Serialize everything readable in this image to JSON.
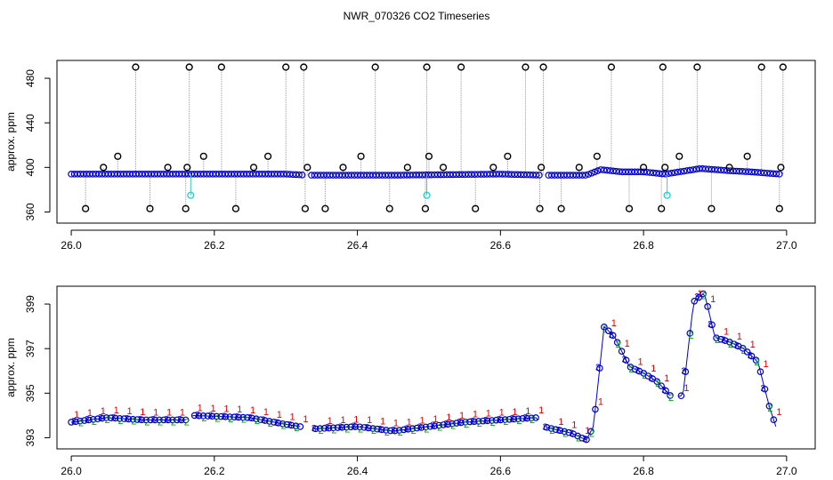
{
  "title": "NWR_070326  CO2 Timeseries",
  "chart_data": [
    {
      "type": "scatter",
      "ylabel": "approx. ppm",
      "xlabel": "",
      "xlim": [
        25.98,
        27.04
      ],
      "ylim": [
        350,
        496
      ],
      "x_ticks": [
        26.0,
        26.2,
        26.4,
        26.6,
        26.8,
        27.0
      ],
      "x_tick_labels": [
        "26.0",
        "26.2",
        "26.4",
        "26.6",
        "26.8",
        "27.0"
      ],
      "y_ticks": [
        360,
        400,
        440,
        480
      ],
      "y_tick_labels": [
        "360",
        "400",
        "440",
        "480"
      ],
      "colors": {
        "main": "#0000cc",
        "outlier": "#000000",
        "flag": "#33cccc",
        "trace": "#999999"
      },
      "main_series": {
        "x": [
          26.0,
          26.1,
          26.2,
          26.3,
          26.33,
          26.45,
          26.6,
          26.66,
          26.72,
          26.74,
          26.77,
          26.8,
          26.83,
          26.85,
          26.88,
          26.92,
          26.95,
          26.99
        ],
        "y": [
          394,
          394,
          394,
          394,
          393,
          393,
          394,
          393,
          393,
          398,
          396,
          396,
          394,
          396,
          399,
          397,
          396,
          394
        ]
      },
      "outliers": {
        "x": [
          26.02,
          26.045,
          26.065,
          26.09,
          26.11,
          26.135,
          26.16,
          26.162,
          26.165,
          26.185,
          26.21,
          26.23,
          26.255,
          26.275,
          26.3,
          26.325,
          26.327,
          26.33,
          26.355,
          26.38,
          26.405,
          26.425,
          26.445,
          26.47,
          26.495,
          26.497,
          26.5,
          26.52,
          26.545,
          26.565,
          26.59,
          26.61,
          26.635,
          26.655,
          26.657,
          26.66,
          26.685,
          26.71,
          26.735,
          26.755,
          26.78,
          26.8,
          26.825,
          26.827,
          26.83,
          26.85,
          26.875,
          26.895,
          26.92,
          26.945,
          26.965,
          26.99,
          26.992,
          26.995
        ],
        "y": [
          363,
          400,
          410,
          490,
          363,
          400,
          363,
          400,
          490,
          410,
          490,
          363,
          400,
          410,
          490,
          490,
          363,
          400,
          363,
          400,
          410,
          490,
          363,
          400,
          363,
          490,
          410,
          400,
          490,
          363,
          400,
          410,
          490,
          363,
          400,
          490,
          363,
          400,
          410,
          490,
          363,
          400,
          363,
          490,
          400,
          410,
          490,
          363,
          400,
          410,
          490,
          363,
          400,
          490
        ]
      },
      "flagged": {
        "x": [
          26.167,
          26.497,
          26.833
        ],
        "y": [
          375,
          375,
          375
        ]
      }
    },
    {
      "type": "scatter",
      "ylabel": "approx. ppm",
      "xlabel": "",
      "xlim": [
        25.98,
        27.04
      ],
      "ylim": [
        392.5,
        399.8
      ],
      "x_ticks": [
        26.0,
        26.2,
        26.4,
        26.6,
        26.8,
        27.0
      ],
      "x_tick_labels": [
        "26.0",
        "26.2",
        "26.4",
        "26.6",
        "26.8",
        "27.0"
      ],
      "y_ticks": [
        393,
        395,
        397,
        399
      ],
      "y_tick_labels": [
        "393",
        "395",
        "397",
        "399"
      ],
      "marker_labels": [
        "1",
        "2",
        "3"
      ],
      "colors": {
        "1": "#dd0000",
        "2": "#00aa00",
        "3": "#0000cc",
        "line": "#0000cc",
        "circle": "#0000cc"
      },
      "series": {
        "x": [
          26.0,
          26.05,
          26.1,
          26.16,
          26.17,
          26.25,
          26.3,
          26.32,
          26.34,
          26.4,
          26.45,
          26.5,
          26.55,
          26.6,
          26.65,
          26.66,
          26.7,
          26.72,
          26.73,
          26.745,
          26.76,
          26.78,
          26.8,
          26.82,
          26.84,
          26.855,
          26.87,
          26.885,
          26.9,
          26.92,
          26.94,
          26.96,
          26.975,
          26.985
        ],
        "y": [
          393.7,
          393.9,
          393.8,
          393.8,
          394.0,
          393.9,
          393.6,
          393.5,
          393.4,
          393.5,
          393.3,
          393.5,
          393.7,
          393.8,
          393.9,
          393.5,
          393.2,
          392.9,
          393.5,
          398.0,
          397.5,
          396.2,
          395.9,
          395.5,
          394.8,
          394.9,
          399.1,
          399.5,
          397.5,
          397.3,
          397.0,
          396.4,
          394.5,
          393.5
        ]
      }
    }
  ]
}
